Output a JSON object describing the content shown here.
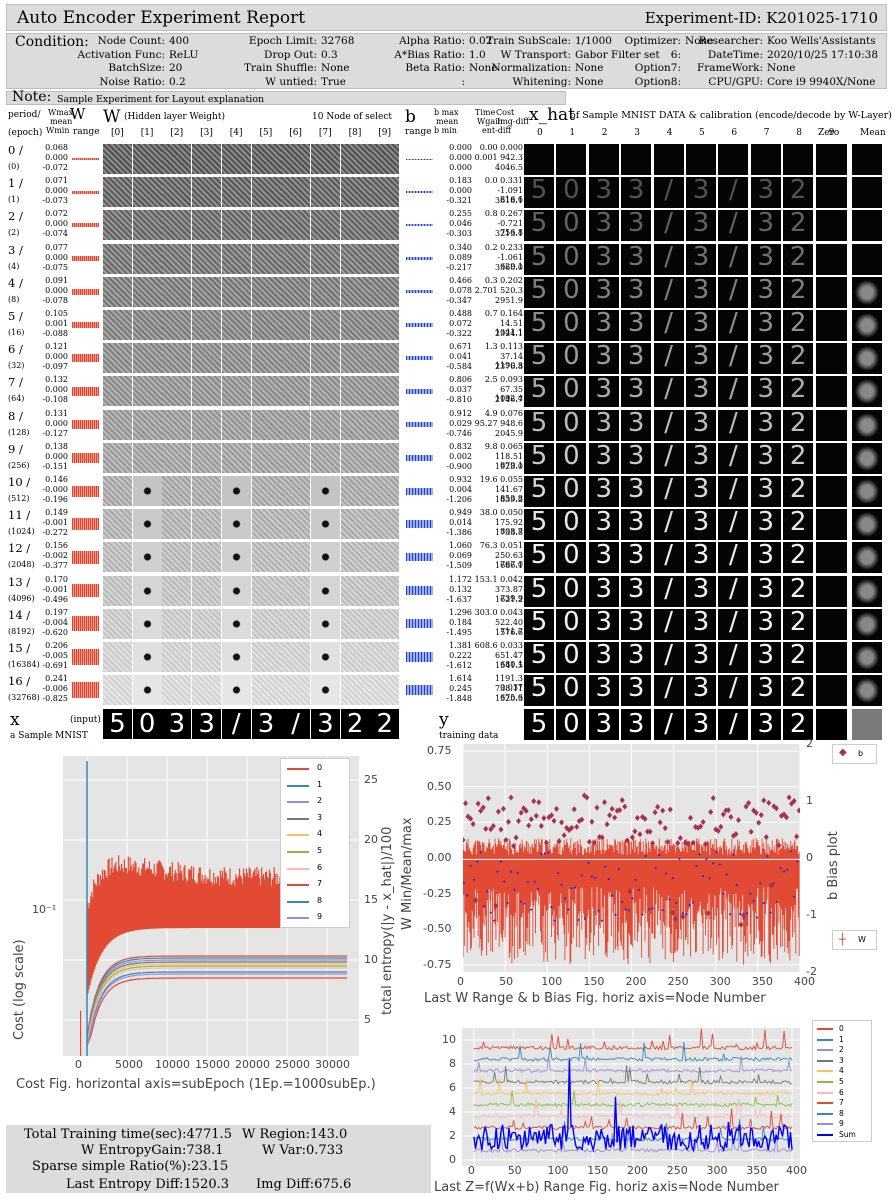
{
  "header": {
    "title": "Auto Encoder Experiment Report",
    "experiment_id": "Experiment-ID:  K201025-1710"
  },
  "condition": {
    "label": "Condition:",
    "fields": [
      {
        "k": "Node Count:",
        "v": "400"
      },
      {
        "k": "Activation Func:",
        "v": "ReLU"
      },
      {
        "k": "BatchSize:",
        "v": "20"
      },
      {
        "k": "Noise Ratio:",
        "v": "0.2"
      },
      {
        "k": "Epoch Limit:",
        "v": "32768"
      },
      {
        "k": "Drop Out:",
        "v": "0.3"
      },
      {
        "k": "Train Shuffle:",
        "v": "None"
      },
      {
        "k": "W untied:",
        "v": "True"
      },
      {
        "k": "Alpha Ratio:",
        "v": "0.02"
      },
      {
        "k": "A*Bias Ratio:",
        "v": "1.0"
      },
      {
        "k": "Beta Ratio:",
        "v": "None"
      },
      {
        "k": ":",
        "v": ""
      },
      {
        "k": "Train SubScale:",
        "v": "1/1000"
      },
      {
        "k": "W Transport:",
        "v": "Gabor Filter set"
      },
      {
        "k": "Normalization:",
        "v": "None"
      },
      {
        "k": "Whitening:",
        "v": "None"
      },
      {
        "k": "Optimizer:",
        "v": "None"
      },
      {
        "k": "6:",
        "v": ""
      },
      {
        "k": "Option7:",
        "v": ""
      },
      {
        "k": "Option8:",
        "v": ""
      },
      {
        "k": "Researcher:",
        "v": "Koo Wells'Assistants"
      },
      {
        "k": "DateTime:",
        "v": "2020/10/25 17:10:38"
      },
      {
        "k": "FrameWork:",
        "v": "None"
      },
      {
        "k": "CPU/GPU:",
        "v": "Core i9 9940X/None"
      }
    ]
  },
  "note": {
    "label": "Note:",
    "text": "Sample Experiment for Layout explanation"
  },
  "table_head": {
    "period": "period/",
    "epoch": "(epoch)",
    "wmax": "Wmax",
    "wmean": "mean",
    "wmin": "Wmin",
    "w_big": "W",
    "range": "range",
    "w_title_big": "W",
    "w_title": "(Hidden layer Weight)",
    "node_select": "10 Node of select",
    "node_idx": [
      "[0]",
      "[1]",
      "[2]",
      "[3]",
      "[4]",
      "[5]",
      "[6]",
      "[7]",
      "[8]",
      "[9]"
    ],
    "b_big": "b",
    "b_range": "range",
    "bmax": "b max",
    "bmean": "mean",
    "bmin": "b min",
    "time": "Time",
    "cost": "Cost",
    "wgain": "Wgain",
    "imgdiff": "Img-diff",
    "entdiff": "ent-diff",
    "xhat_big": "x_hat",
    "xhat_title": "of Sample MNIST DATA & calibration (encode/decode by W-Layer)",
    "cols": [
      "0",
      "1",
      "2",
      "3",
      "4",
      "5",
      "6",
      "7",
      "8",
      "9",
      "Zero",
      "Mean"
    ]
  },
  "rows": [
    {
      "p": "0 /",
      "e": "(0)",
      "w": [
        "0.068",
        "0.000",
        "-0.072"
      ],
      "b": [
        "0.000",
        "0.000",
        "0.000"
      ],
      "t": [
        "0.00",
        "0.000"
      ],
      "g": [
        "0.001",
        "942.3"
      ],
      "d": "4046.5"
    },
    {
      "p": "1 /",
      "e": "(1)",
      "w": [
        "0.071",
        "0.000",
        "-0.073"
      ],
      "b": [
        "0.183",
        "0.000",
        "-0.321"
      ],
      "t": [
        "0.0",
        "0.331"
      ],
      "g": [
        "-1.091",
        "816.6"
      ],
      "d": "3618.1"
    },
    {
      "p": "2 /",
      "e": "(2)",
      "w": [
        "0.072",
        "0.000",
        "-0.074"
      ],
      "b": [
        "0.255",
        "0.046",
        "-0.303"
      ],
      "t": [
        "0.8",
        "0.267"
      ],
      "g": [
        "-0.721",
        "756.8"
      ],
      "d": "3213.1"
    },
    {
      "p": "3 /",
      "e": "(4)",
      "w": [
        "0.077",
        "0.000",
        "-0.075"
      ],
      "b": [
        "0.340",
        "0.089",
        "-0.217"
      ],
      "t": [
        "0.2",
        "0.233"
      ],
      "g": [
        "-1.061",
        "629.1"
      ],
      "d": "3360.0"
    },
    {
      "p": "4 /",
      "e": "(8)",
      "w": [
        "0.091",
        "0.000",
        "-0.078"
      ],
      "b": [
        "0.466",
        "0.078",
        "-0.347"
      ],
      "t": [
        "0.3",
        "0.202"
      ],
      "g": [
        "2.701",
        "520.3"
      ],
      "d": "2951.9"
    },
    {
      "p": "5 /",
      "e": "(16)",
      "w": [
        "0.105",
        "0.001",
        "-0.088"
      ],
      "b": [
        "0.488",
        "0.072",
        "-0.322"
      ],
      "t": [
        "0.7",
        "0.164"
      ],
      "g": [
        "14.51",
        "1341.1"
      ],
      "d": "2924.1"
    },
    {
      "p": "6 /",
      "e": "(32)",
      "w": [
        "0.121",
        "0.000",
        "-0.097"
      ],
      "b": [
        "0.671",
        "0.041",
        "-0.584"
      ],
      "t": [
        "1.3",
        "0.113"
      ],
      "g": [
        "37.14",
        "1190.3"
      ],
      "d": "2376.8"
    },
    {
      "p": "7 /",
      "e": "(64)",
      "w": [
        "0.132",
        "0.000",
        "-0.108"
      ],
      "b": [
        "0.806",
        "0.037",
        "-0.810"
      ],
      "t": [
        "2.5",
        "0.093"
      ],
      "g": [
        "67.35",
        "1092.4"
      ],
      "d": "2146.7"
    },
    {
      "p": "8 /",
      "e": "(128)",
      "w": [
        "0.131",
        "0.000",
        "-0.127"
      ],
      "b": [
        "0.912",
        "0.029",
        "-0.746"
      ],
      "t": [
        "4.9",
        "0.076"
      ],
      "g": [
        "95.27",
        "948.6"
      ],
      "d": "2045.9"
    },
    {
      "p": "9 /",
      "e": "(256)",
      "w": [
        "0.138",
        "0.000",
        "-0.151"
      ],
      "b": [
        "0.832",
        "0.002",
        "-0.900"
      ],
      "t": [
        "9.8",
        "0.065"
      ],
      "g": [
        "118.51",
        "879.1"
      ],
      "d": "1928.0"
    },
    {
      "p": "10 /",
      "e": "(512)",
      "w": [
        "0.146",
        "-0.000",
        "-0.196"
      ],
      "b": [
        "0.932",
        "0.004",
        "-1.206"
      ],
      "t": [
        "19.6",
        "0.055"
      ],
      "g": [
        "141.67",
        "853.8"
      ],
      "d": "1839.2"
    },
    {
      "p": "11 /",
      "e": "(1024)",
      "w": [
        "0.149",
        "-0.001",
        "-0.272"
      ],
      "b": [
        "0.949",
        "0.014",
        "-1.386"
      ],
      "t": [
        "38.0",
        "0.050"
      ],
      "g": [
        "175.92",
        "808.7"
      ],
      "d": "1733.8"
    },
    {
      "p": "12 /",
      "e": "(2048)",
      "w": [
        "0.156",
        "-0.002",
        "-0.377"
      ],
      "b": [
        "1.060",
        "0.069",
        "-1.509"
      ],
      "t": [
        "76.3",
        "0.051"
      ],
      "g": [
        "250.63",
        "767.0"
      ],
      "d": "1686.1"
    },
    {
      "p": "13 /",
      "e": "(4096)",
      "w": [
        "0.170",
        "-0.001",
        "-0.496"
      ],
      "b": [
        "1.172",
        "0.132",
        "-1.637"
      ],
      "t": [
        "153.1",
        "0.042"
      ],
      "g": [
        "373.87",
        "739.9"
      ],
      "d": "1621.2"
    },
    {
      "p": "14 /",
      "e": "(8192)",
      "w": [
        "0.197",
        "-0.004",
        "-0.620"
      ],
      "b": [
        "1.296",
        "0.184",
        "-1.495"
      ],
      "t": [
        "303.0",
        "0.043"
      ],
      "g": [
        "522.40",
        "711.7"
      ],
      "d": "1576.6"
    },
    {
      "p": "15 /",
      "e": "(16384)",
      "w": [
        "0.206",
        "-0.005",
        "-0.691"
      ],
      "b": [
        "1.381",
        "0.222",
        "-1.612"
      ],
      "t": [
        "608.6",
        "0.033"
      ],
      "g": [
        "651.47",
        "680.1"
      ],
      "d": "1541.5"
    },
    {
      "p": "16 /",
      "e": "(32768)",
      "w": [
        "0.241",
        "-0.006",
        "-0.825"
      ],
      "b": [
        "1.614",
        "0.245",
        "-1.848"
      ],
      "t": [
        "1191.3",
        "0.037"
      ],
      "g": [
        "738.11",
        "675.6"
      ],
      "d": "1520.3"
    }
  ],
  "x_row": {
    "big": "x",
    "input": "(input)",
    "sub": "a Sample MNIST"
  },
  "y_row": {
    "big": "y",
    "sub": "training data"
  },
  "digit_glyphs": [
    "5",
    "0",
    "3",
    "3",
    "/",
    "3",
    "/",
    "3",
    "2",
    "2"
  ],
  "chart_data": [
    {
      "type": "line",
      "ylabel": "Cost  (log scale)",
      "y2label": "total entropy(|y - x_hat|)/100",
      "xlabel": "Cost Fig.  horizontal axis=subEpoch (1Ep.=1000subEp.)",
      "yscale": "log",
      "y_tick_labels": [
        "10⁻¹"
      ],
      "x_ticks": [
        0,
        5000,
        10000,
        15000,
        20000,
        25000,
        30000
      ],
      "y2_ticks": [
        5,
        10,
        15,
        20,
        25
      ],
      "xlim": [
        -3000,
        34000
      ],
      "series": [
        {
          "name": "0",
          "color": "#e24a33"
        },
        {
          "name": "1",
          "color": "#348abd"
        },
        {
          "name": "2",
          "color": "#988ed5"
        },
        {
          "name": "3",
          "color": "#777777"
        },
        {
          "name": "4",
          "color": "#fbc15e"
        },
        {
          "name": "5",
          "color": "#8eba42"
        },
        {
          "name": "6",
          "color": "#ffb5b8"
        },
        {
          "name": "7",
          "color": "#e24a33"
        },
        {
          "name": "8",
          "color": "#348abd"
        },
        {
          "name": "9",
          "color": "#988ed5"
        }
      ],
      "legend": "top-right",
      "grid": true
    },
    {
      "type": "scatter",
      "ylabel": "W Min/Mean/max",
      "y2label": "b Bias plot",
      "xlabel": "Last W Range & b Bias Fig.  horiz axis=Node Number",
      "x_ticks": [
        0,
        50,
        100,
        150,
        200,
        250,
        300,
        350,
        400
      ],
      "y_ticks": [
        0.75,
        0.5,
        0.25,
        0.0,
        -0.25,
        -0.5,
        -0.75
      ],
      "y_tick_labels": [
        "0.75",
        "0.50",
        "0.25",
        "0.00",
        "-0.25",
        "-0.50",
        "-0.75"
      ],
      "y2_ticks": [
        2,
        1,
        0,
        -1,
        -2
      ],
      "xlim": [
        0,
        400
      ],
      "ylim": [
        -0.8,
        0.8
      ],
      "y2lim": [
        -2,
        2
      ],
      "series": [
        {
          "name": "b",
          "color": "#a8304a"
        },
        {
          "name": "W",
          "color": "#e24a33"
        }
      ],
      "legend": "right",
      "grid": true
    },
    {
      "type": "line",
      "xlabel": "Last Z=f(Wx+b) Range Fig.  horiz axis=Node Number",
      "x_ticks": [
        0,
        50,
        100,
        150,
        200,
        250,
        300,
        350,
        400
      ],
      "y_ticks": [
        0,
        2,
        4,
        6,
        8,
        10
      ],
      "xlim": [
        -15,
        410
      ],
      "ylim": [
        -0.5,
        11
      ],
      "series": [
        {
          "name": "0",
          "color": "#e24a33"
        },
        {
          "name": "1",
          "color": "#348abd"
        },
        {
          "name": "2",
          "color": "#988ed5"
        },
        {
          "name": "3",
          "color": "#777777"
        },
        {
          "name": "4",
          "color": "#fbc15e"
        },
        {
          "name": "5",
          "color": "#8eba42"
        },
        {
          "name": "6",
          "color": "#ffb5b8"
        },
        {
          "name": "7",
          "color": "#e24a33"
        },
        {
          "name": "8",
          "color": "#348abd"
        },
        {
          "name": "9",
          "color": "#988ed5"
        },
        {
          "name": "Sum",
          "color": "#0000ff"
        }
      ],
      "legend": "right",
      "grid": true
    }
  ],
  "summary": {
    "train_time": "Total Training time(sec):4771.5",
    "w_region": "W Region:143.0",
    "w_gain": "W EntropyGain:738.1",
    "w_var": "W Var:0.733",
    "sparse": "Sparse simple Ratio(%):23.15",
    "last_ent": "Last Entropy Diff:1520.3",
    "img_diff": "Img Diff:675.6"
  }
}
